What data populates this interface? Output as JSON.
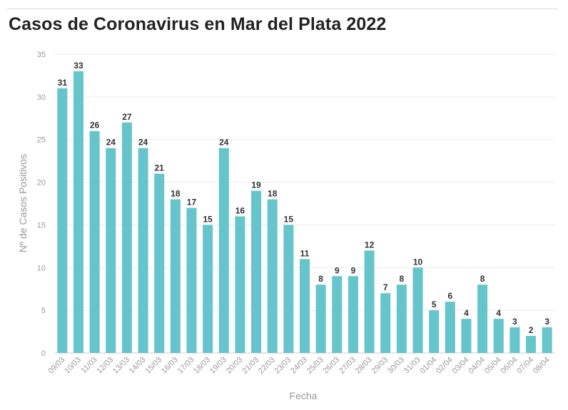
{
  "title": "Casos de Coronavirus en Mar del Plata 2022",
  "chart_data": {
    "type": "bar",
    "title": "Casos de Coronavirus en Mar del Plata 2022",
    "xlabel": "Fecha",
    "ylabel": "Nº de Casos Positivos",
    "ylim": [
      0,
      35
    ],
    "yticks": [
      0,
      5,
      10,
      15,
      20,
      25,
      30,
      35
    ],
    "grid": true,
    "bar_color": "#66c5cb",
    "categories": [
      "09/03",
      "10/03",
      "11/03",
      "12/03",
      "13/03",
      "14/03",
      "15/03",
      "16/03",
      "17/03",
      "18/03",
      "19/03",
      "20/03",
      "21/03",
      "22/03",
      "23/03",
      "24/03",
      "25/03",
      "26/03",
      "27/03",
      "28/03",
      "29/03",
      "30/03",
      "31/03",
      "01/04",
      "02/04",
      "03/04",
      "04/04",
      "05/04",
      "06/04",
      "07/04",
      "08/04"
    ],
    "values": [
      31,
      33,
      26,
      24,
      27,
      24,
      21,
      18,
      17,
      15,
      24,
      16,
      19,
      18,
      15,
      11,
      8,
      9,
      9,
      12,
      7,
      8,
      10,
      5,
      6,
      4,
      8,
      4,
      3,
      2,
      3
    ]
  }
}
